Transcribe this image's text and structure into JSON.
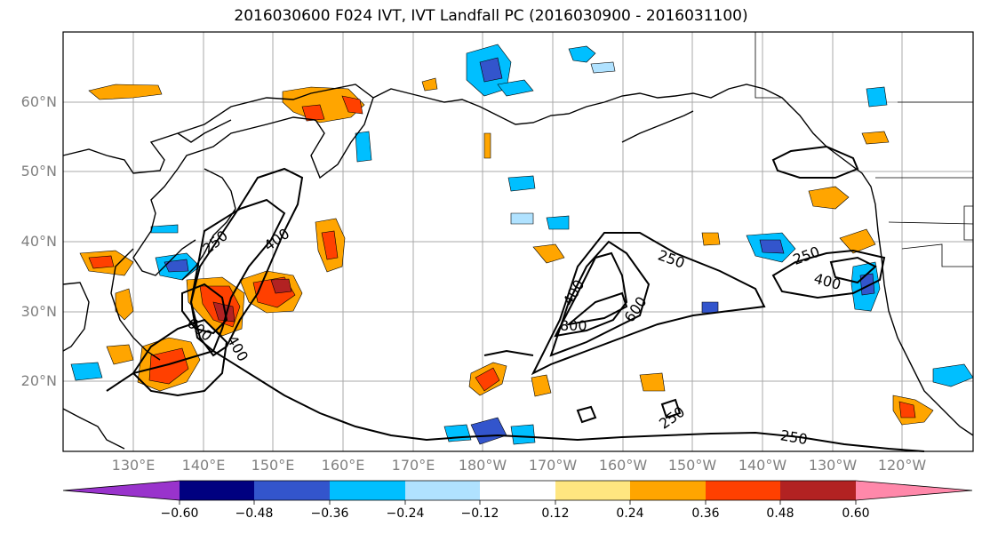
{
  "title": "2016030600 F024 IVT, IVT Landfall PC (2016030900 - 2016031100)",
  "lat_ticks": [
    "60°N",
    "50°N",
    "40°N",
    "30°N",
    "20°N"
  ],
  "lon_ticks": [
    "130°E",
    "140°E",
    "150°E",
    "160°E",
    "170°E",
    "180°W",
    "170°W",
    "160°W",
    "150°W",
    "140°W",
    "130°W",
    "120°W"
  ],
  "contour_labels": [
    "250",
    "400",
    "600",
    "800",
    "400",
    "250",
    "400",
    "250",
    "600",
    "400",
    "250",
    "250"
  ],
  "colorbar": {
    "ticks": [
      "−0.60",
      "−0.48",
      "−0.36",
      "−0.24",
      "−0.12",
      "0.12",
      "0.24",
      "0.36",
      "0.48",
      "0.60"
    ],
    "colors": [
      "#9933cc",
      "#000080",
      "#3355cc",
      "#00bfff",
      "#b0e2ff",
      "#ffffff",
      "#ffe680",
      "#ffa500",
      "#ff4000",
      "#b22222",
      "#ff88aa"
    ]
  }
}
